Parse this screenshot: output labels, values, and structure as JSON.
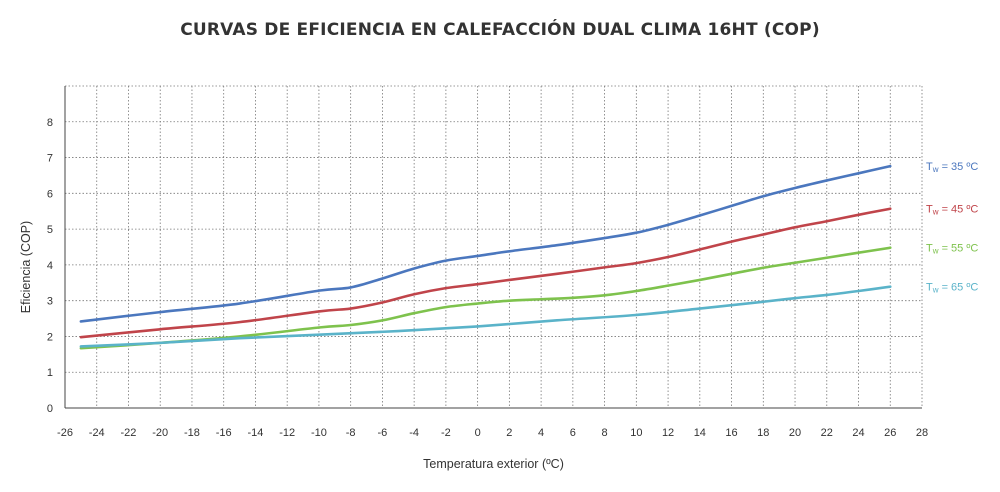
{
  "chart_data": {
    "type": "line",
    "title": "CURVAS DE EFICIENCIA EN CALEFACCIÓN DUAL CLIMA 16HT (COP)",
    "xlabel": "Temperatura exterior (ºC)",
    "ylabel": "Eficiencia (COP)",
    "xlim": [
      -26,
      28
    ],
    "ylim": [
      0,
      9
    ],
    "x_ticks": [
      -26,
      -24,
      -22,
      -20,
      -18,
      -16,
      -14,
      -12,
      -10,
      -8,
      -6,
      -4,
      -2,
      0,
      2,
      4,
      6,
      8,
      10,
      12,
      14,
      16,
      18,
      20,
      22,
      24,
      26,
      28
    ],
    "y_ticks": [
      0,
      1,
      2,
      3,
      4,
      5,
      6,
      7,
      8
    ],
    "grid": "dotted",
    "legend_placement": "right, at end of each line",
    "series": [
      {
        "label_prefix": "T",
        "label_sub": "w",
        "label_suffix": " = 35 ºC",
        "color": "#4b77be",
        "x": [
          -25,
          -20,
          -15,
          -10,
          -8,
          -6,
          -4,
          -2,
          0,
          2,
          5,
          8,
          10,
          12,
          14,
          16,
          18,
          20,
          22,
          24,
          26
        ],
        "y": [
          2.42,
          2.68,
          2.92,
          3.28,
          3.37,
          3.62,
          3.9,
          4.12,
          4.25,
          4.38,
          4.55,
          4.75,
          4.9,
          5.12,
          5.38,
          5.65,
          5.92,
          6.15,
          6.36,
          6.56,
          6.76
        ]
      },
      {
        "label_prefix": "T",
        "label_sub": "w",
        "label_suffix": " = 45 ºC",
        "color": "#c0444a",
        "x": [
          -25,
          -20,
          -15,
          -10,
          -8,
          -6,
          -4,
          -2,
          0,
          2,
          5,
          8,
          10,
          12,
          14,
          16,
          18,
          20,
          22,
          24,
          26
        ],
        "y": [
          1.98,
          2.2,
          2.4,
          2.7,
          2.78,
          2.95,
          3.18,
          3.35,
          3.46,
          3.58,
          3.75,
          3.93,
          4.05,
          4.22,
          4.43,
          4.65,
          4.85,
          5.05,
          5.22,
          5.4,
          5.57
        ]
      },
      {
        "label_prefix": "T",
        "label_sub": "w",
        "label_suffix": " = 55 ºC",
        "color": "#7ec24d",
        "x": [
          -25,
          -20,
          -15,
          -10,
          -8,
          -6,
          -4,
          -2,
          0,
          2,
          4,
          6,
          8,
          10,
          12,
          14,
          16,
          18,
          20,
          22,
          24,
          26
        ],
        "y": [
          1.67,
          1.82,
          2.0,
          2.25,
          2.32,
          2.45,
          2.65,
          2.82,
          2.92,
          3.0,
          3.04,
          3.08,
          3.15,
          3.27,
          3.42,
          3.58,
          3.75,
          3.92,
          4.06,
          4.2,
          4.34,
          4.48
        ]
      },
      {
        "label_prefix": "T",
        "label_sub": "w",
        "label_suffix": " = 65 ºC",
        "color": "#5ab3c9",
        "x": [
          -25,
          -20,
          -15,
          -10,
          -5,
          0,
          5,
          10,
          14,
          18,
          20,
          22,
          24,
          26
        ],
        "y": [
          1.72,
          1.82,
          1.95,
          2.05,
          2.15,
          2.28,
          2.45,
          2.6,
          2.78,
          2.97,
          3.07,
          3.16,
          3.27,
          3.39
        ]
      }
    ]
  }
}
